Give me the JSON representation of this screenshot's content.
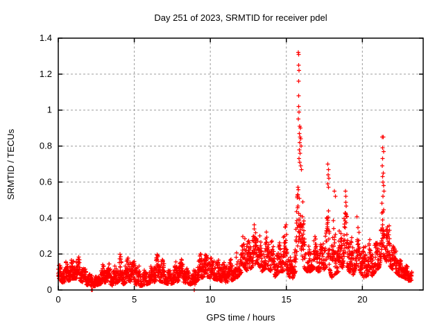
{
  "window": {
    "background": "#ffffff"
  },
  "chart_data": {
    "type": "scatter",
    "title": "Day 251 of 2023, SRMTID for receiver pdel",
    "xlabel": "GPS time / hours",
    "ylabel": "SRMTID / TECUs",
    "xlim": [
      0,
      24
    ],
    "ylim": [
      0,
      1.4
    ],
    "xticks": [
      0,
      5,
      10,
      15,
      20
    ],
    "xtick_labels": [
      "0",
      "5",
      "10",
      "15",
      "20"
    ],
    "yticks": [
      0,
      0.2,
      0.4,
      0.6,
      0.8,
      1,
      1.2,
      1.4
    ],
    "ytick_labels": [
      "0",
      "0.2",
      "0.4",
      "0.6",
      "0.8",
      "1",
      "1.2",
      "1.4"
    ],
    "grid": true,
    "legend": "none",
    "marker": "plus",
    "marker_color": "#ff0000",
    "grid_color": "#9c9c9c",
    "frame_color": "#000000",
    "series_name": "SRMTID",
    "time_range_hours": [
      0,
      23.25
    ],
    "sample_interval_hours": 0.0083333,
    "max_value": 1.32,
    "max_value_time_hours": 15.8,
    "band_envelope": [
      [
        0.0,
        0.04,
        0.16
      ],
      [
        0.3,
        0.04,
        0.14
      ],
      [
        0.7,
        0.05,
        0.17
      ],
      [
        1.0,
        0.06,
        0.2
      ],
      [
        1.2,
        0.06,
        0.27
      ],
      [
        1.45,
        0.05,
        0.18
      ],
      [
        1.8,
        0.03,
        0.13
      ],
      [
        2.1,
        0.02,
        0.1
      ],
      [
        2.4,
        0.02,
        0.09
      ],
      [
        2.7,
        0.03,
        0.13
      ],
      [
        3.0,
        0.04,
        0.16
      ],
      [
        3.3,
        0.04,
        0.17
      ],
      [
        3.6,
        0.02,
        0.12
      ],
      [
        3.9,
        0.04,
        0.2
      ],
      [
        4.05,
        0.05,
        0.24
      ],
      [
        4.3,
        0.03,
        0.14
      ],
      [
        4.6,
        0.05,
        0.23
      ],
      [
        4.8,
        0.04,
        0.2
      ],
      [
        5.1,
        0.03,
        0.16
      ],
      [
        5.4,
        0.02,
        0.12
      ],
      [
        5.8,
        0.03,
        0.14
      ],
      [
        6.2,
        0.04,
        0.15
      ],
      [
        6.6,
        0.05,
        0.21
      ],
      [
        6.9,
        0.04,
        0.18
      ],
      [
        7.3,
        0.03,
        0.13
      ],
      [
        7.7,
        0.04,
        0.17
      ],
      [
        8.0,
        0.05,
        0.18
      ],
      [
        8.3,
        0.04,
        0.15
      ],
      [
        8.7,
        0.03,
        0.12
      ],
      [
        9.0,
        0.04,
        0.14
      ],
      [
        9.3,
        0.06,
        0.22
      ],
      [
        9.6,
        0.07,
        0.24
      ],
      [
        9.9,
        0.07,
        0.24
      ],
      [
        10.2,
        0.06,
        0.22
      ],
      [
        10.6,
        0.05,
        0.18
      ],
      [
        11.0,
        0.04,
        0.16
      ],
      [
        11.4,
        0.05,
        0.19
      ],
      [
        11.8,
        0.07,
        0.22
      ],
      [
        12.1,
        0.1,
        0.3
      ],
      [
        12.25,
        0.12,
        0.4
      ],
      [
        12.45,
        0.1,
        0.26
      ],
      [
        12.7,
        0.12,
        0.32
      ],
      [
        12.95,
        0.14,
        0.38
      ],
      [
        13.15,
        0.14,
        0.42
      ],
      [
        13.4,
        0.1,
        0.28
      ],
      [
        13.7,
        0.12,
        0.34
      ],
      [
        14.0,
        0.1,
        0.3
      ],
      [
        14.25,
        0.07,
        0.24
      ],
      [
        14.55,
        0.1,
        0.3
      ],
      [
        14.8,
        0.1,
        0.34
      ],
      [
        15.0,
        0.12,
        0.46
      ],
      [
        15.2,
        0.07,
        0.22
      ],
      [
        15.4,
        0.06,
        0.18
      ],
      [
        15.6,
        0.1,
        0.35
      ],
      [
        15.75,
        0.18,
        0.6
      ],
      [
        15.85,
        0.3,
        0.66
      ],
      [
        16.0,
        0.2,
        0.55
      ],
      [
        16.15,
        0.12,
        0.45
      ],
      [
        16.35,
        0.1,
        0.32
      ],
      [
        16.6,
        0.1,
        0.28
      ],
      [
        16.85,
        0.12,
        0.32
      ],
      [
        17.1,
        0.1,
        0.26
      ],
      [
        17.4,
        0.1,
        0.3
      ],
      [
        17.6,
        0.12,
        0.45
      ],
      [
        17.8,
        0.12,
        0.55
      ],
      [
        18.0,
        0.06,
        0.4
      ],
      [
        18.2,
        0.08,
        0.45
      ],
      [
        18.45,
        0.1,
        0.32
      ],
      [
        18.7,
        0.12,
        0.4
      ],
      [
        18.9,
        0.15,
        0.5
      ],
      [
        19.1,
        0.1,
        0.35
      ],
      [
        19.4,
        0.08,
        0.28
      ],
      [
        19.65,
        0.15,
        0.45
      ],
      [
        19.85,
        0.1,
        0.32
      ],
      [
        20.1,
        0.06,
        0.24
      ],
      [
        20.35,
        0.08,
        0.3
      ],
      [
        20.6,
        0.07,
        0.26
      ],
      [
        20.85,
        0.1,
        0.3
      ],
      [
        21.1,
        0.12,
        0.38
      ],
      [
        21.3,
        0.2,
        0.55
      ],
      [
        21.45,
        0.18,
        0.5
      ],
      [
        21.65,
        0.14,
        0.4
      ],
      [
        21.9,
        0.12,
        0.3
      ],
      [
        22.15,
        0.1,
        0.26
      ],
      [
        22.4,
        0.08,
        0.22
      ],
      [
        22.7,
        0.07,
        0.18
      ],
      [
        23.0,
        0.05,
        0.14
      ],
      [
        23.25,
        0.05,
        0.12
      ]
    ],
    "extreme_points": [
      [
        15.78,
        1.32
      ],
      [
        15.82,
        1.31
      ],
      [
        15.8,
        1.25
      ],
      [
        15.84,
        1.22
      ],
      [
        15.8,
        1.16
      ],
      [
        15.82,
        1.08
      ],
      [
        15.8,
        1.02
      ],
      [
        15.83,
        0.99
      ],
      [
        15.79,
        0.95
      ],
      [
        15.88,
        0.91
      ],
      [
        15.93,
        0.9
      ],
      [
        15.86,
        0.87
      ],
      [
        15.9,
        0.85
      ],
      [
        15.95,
        0.84
      ],
      [
        15.88,
        0.82
      ],
      [
        15.97,
        0.8
      ],
      [
        15.85,
        0.78
      ],
      [
        15.91,
        0.76
      ],
      [
        15.83,
        0.73
      ],
      [
        15.87,
        0.71
      ],
      [
        15.94,
        0.69
      ],
      [
        15.99,
        0.67
      ],
      [
        17.72,
        0.7
      ],
      [
        17.77,
        0.67
      ],
      [
        17.74,
        0.64
      ],
      [
        17.79,
        0.62
      ],
      [
        17.73,
        0.59
      ],
      [
        17.78,
        0.57
      ],
      [
        18.15,
        0.55
      ],
      [
        18.22,
        0.52
      ],
      [
        18.88,
        0.55
      ],
      [
        18.92,
        0.52
      ],
      [
        21.3,
        0.85
      ],
      [
        21.37,
        0.85
      ],
      [
        21.32,
        0.79
      ],
      [
        21.39,
        0.77
      ],
      [
        21.34,
        0.73
      ],
      [
        21.31,
        0.69
      ],
      [
        21.38,
        0.65
      ],
      [
        21.33,
        0.63
      ],
      [
        21.36,
        0.6
      ],
      [
        21.4,
        0.58
      ],
      [
        21.42,
        0.55
      ],
      [
        21.35,
        0.52
      ],
      [
        2.18,
        0.0
      ],
      [
        2.24,
        0.0
      ],
      [
        8.95,
        0.0
      ],
      [
        8.98,
        0.03
      ],
      [
        9.02,
        0.08
      ]
    ]
  }
}
